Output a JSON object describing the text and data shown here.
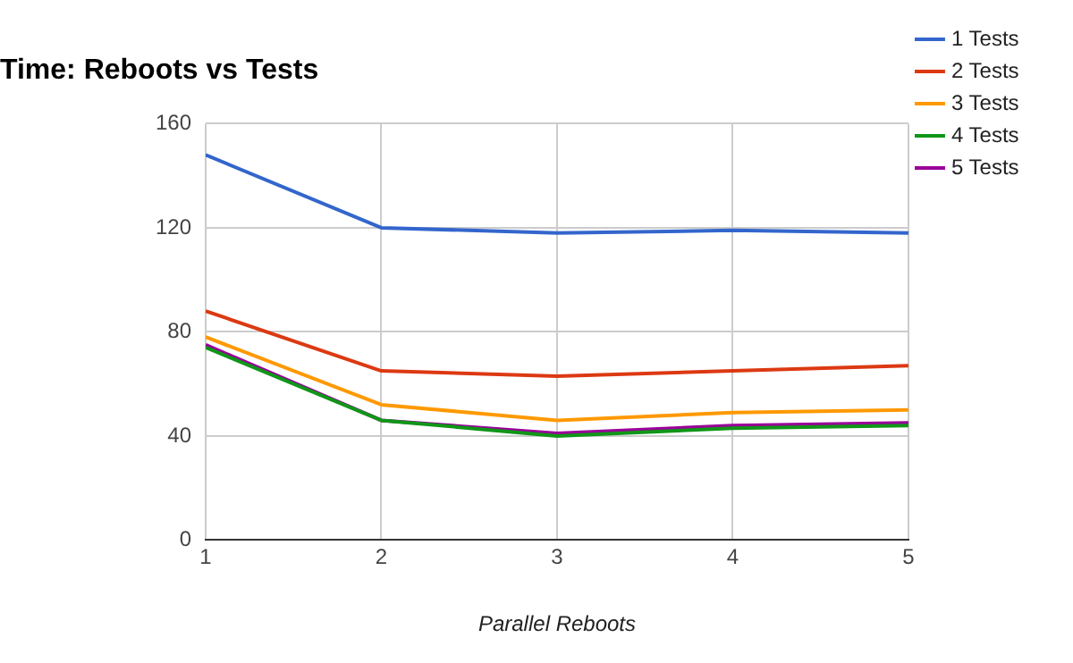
{
  "chart_data": {
    "type": "line",
    "title": "Time: Reboots vs Tests",
    "xlabel": "Parallel Reboots",
    "x": [
      1,
      2,
      3,
      4,
      5
    ],
    "xlim": [
      1,
      5
    ],
    "xticks": [
      1,
      2,
      3,
      4,
      5
    ],
    "ylim": [
      0,
      160
    ],
    "yticks": [
      0,
      40,
      80,
      120,
      160
    ],
    "grid": true,
    "legend": "right",
    "marker": "none",
    "line_style": "solid",
    "series": [
      {
        "name": "1 Tests",
        "color": "#3366cc",
        "values": [
          148,
          120,
          118,
          119,
          118
        ]
      },
      {
        "name": "2 Tests",
        "color": "#dc3912",
        "values": [
          88,
          65,
          63,
          65,
          67
        ]
      },
      {
        "name": "3 Tests",
        "color": "#ff9900",
        "values": [
          78,
          52,
          46,
          49,
          50
        ]
      },
      {
        "name": "4 Tests",
        "color": "#109618",
        "values": [
          74,
          46,
          40,
          43,
          44
        ]
      },
      {
        "name": "5 Tests",
        "color": "#990099",
        "values": [
          75,
          46,
          41,
          44,
          45
        ]
      }
    ]
  }
}
